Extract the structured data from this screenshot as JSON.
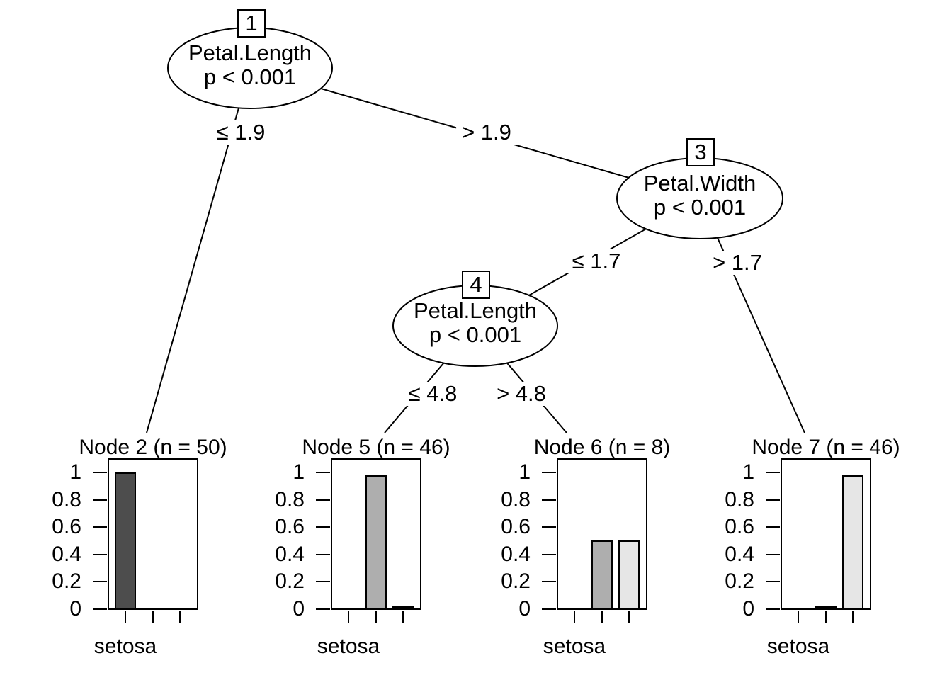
{
  "figure": {
    "kind": "conditional inference tree (ctree) plot",
    "background": "#ffffff",
    "foreground": "#000000"
  },
  "tree": {
    "nodes": [
      {
        "id": "1",
        "variable": "Petal.Length",
        "p_value": "p < 0.001"
      },
      {
        "id": "3",
        "variable": "Petal.Width",
        "p_value": "p < 0.001"
      },
      {
        "id": "4",
        "variable": "Petal.Length",
        "p_value": "p < 0.001"
      }
    ],
    "edges": [
      {
        "from": "1",
        "to": "2",
        "label": "≤ 1.9"
      },
      {
        "from": "1",
        "to": "3",
        "label": "> 1.9"
      },
      {
        "from": "3",
        "to": "4",
        "label": "≤ 1.7"
      },
      {
        "from": "3",
        "to": "7",
        "label": "> 1.7"
      },
      {
        "from": "4",
        "to": "5",
        "label": "≤ 4.8"
      },
      {
        "from": "4",
        "to": "6",
        "label": "> 4.8"
      }
    ]
  },
  "chart_data": [
    {
      "type": "bar",
      "title": "Node 2 (n = 50)",
      "n": 50,
      "x_tick_label": "setosa",
      "num_bars": 3,
      "values": [
        1,
        0,
        0
      ],
      "yticks": [
        0,
        0.2,
        0.4,
        0.6,
        0.8,
        1
      ],
      "ytick_labels": [
        "0",
        "0.2",
        "0.4",
        "0.6",
        "0.8",
        "1"
      ],
      "ylim": [
        0,
        1.1
      ],
      "bar_colors": [
        "#4D4D4D",
        "#AEAEAE",
        "#E6E6E6"
      ],
      "legend_position": "none",
      "grid": false
    },
    {
      "type": "bar",
      "title": "Node 5 (n = 46)",
      "n": 46,
      "x_tick_label": "setosa",
      "num_bars": 3,
      "values": [
        0,
        0.98,
        0.02
      ],
      "yticks": [
        0,
        0.2,
        0.4,
        0.6,
        0.8,
        1
      ],
      "ytick_labels": [
        "0",
        "0.2",
        "0.4",
        "0.6",
        "0.8",
        "1"
      ],
      "ylim": [
        0,
        1.1
      ],
      "bar_colors": [
        "#4D4D4D",
        "#AEAEAE",
        "#E6E6E6"
      ],
      "legend_position": "none",
      "grid": false
    },
    {
      "type": "bar",
      "title": "Node 6 (n = 8)",
      "n": 8,
      "x_tick_label": "setosa",
      "num_bars": 3,
      "values": [
        0,
        0.5,
        0.5
      ],
      "yticks": [
        0,
        0.2,
        0.4,
        0.6,
        0.8,
        1
      ],
      "ytick_labels": [
        "0",
        "0.2",
        "0.4",
        "0.6",
        "0.8",
        "1"
      ],
      "ylim": [
        0,
        1.1
      ],
      "bar_colors": [
        "#4D4D4D",
        "#AEAEAE",
        "#E6E6E6"
      ],
      "legend_position": "none",
      "grid": false
    },
    {
      "type": "bar",
      "title": "Node 7 (n = 46)",
      "n": 46,
      "x_tick_label": "setosa",
      "num_bars": 3,
      "values": [
        0,
        0.02,
        0.98
      ],
      "yticks": [
        0,
        0.2,
        0.4,
        0.6,
        0.8,
        1
      ],
      "ytick_labels": [
        "0",
        "0.2",
        "0.4",
        "0.6",
        "0.8",
        "1"
      ],
      "ylim": [
        0,
        1.1
      ],
      "bar_colors": [
        "#4D4D4D",
        "#AEAEAE",
        "#E6E6E6"
      ],
      "legend_position": "none",
      "grid": false
    }
  ]
}
